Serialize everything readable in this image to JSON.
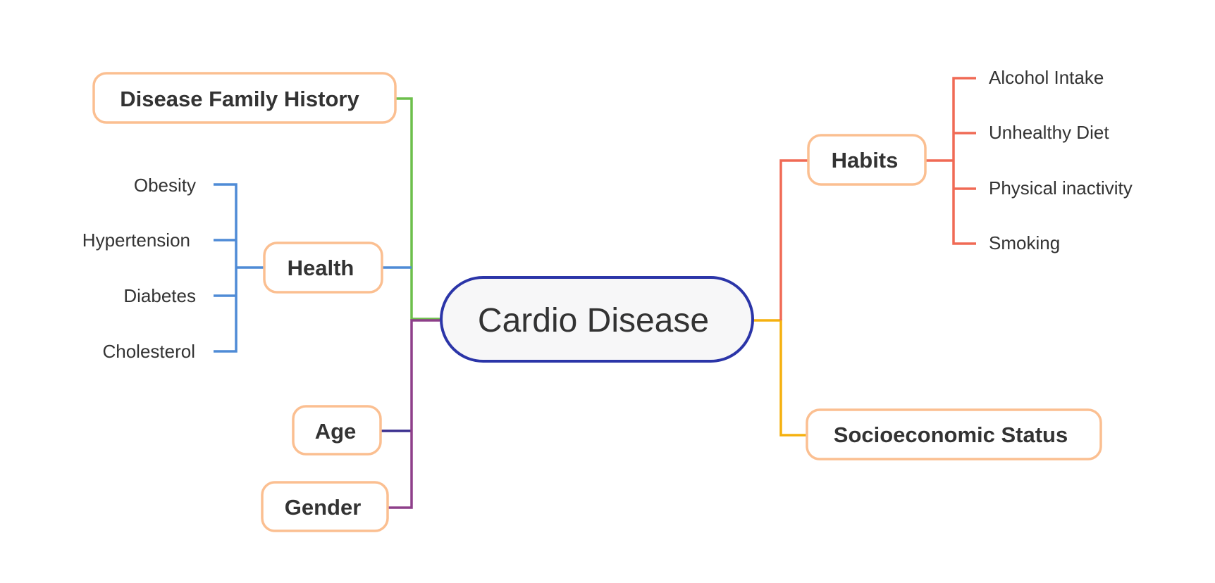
{
  "root": {
    "label": "Cardio Disease",
    "border_color": "#2b35a8"
  },
  "branches": {
    "family_history": {
      "label": "Disease Family History",
      "color": "#6dbf4b"
    },
    "health": {
      "label": "Health",
      "color": "#4f8bd6",
      "children": [
        "Obesity",
        "Hypertension",
        "Diabetes",
        "Cholesterol"
      ]
    },
    "age": {
      "label": "Age",
      "color": "#3b2f8f"
    },
    "gender": {
      "label": "Gender",
      "color": "#8e3f8a"
    },
    "habits": {
      "label": "Habits",
      "color": "#f06a55",
      "children": [
        "Alcohol Intake",
        "Unhealthy Diet",
        "Physical inactivity",
        "Smoking"
      ]
    },
    "socioeconomic": {
      "label": "Socioeconomic Status",
      "color": "#f5b10f"
    }
  },
  "node_border_color": "#fbbf91"
}
